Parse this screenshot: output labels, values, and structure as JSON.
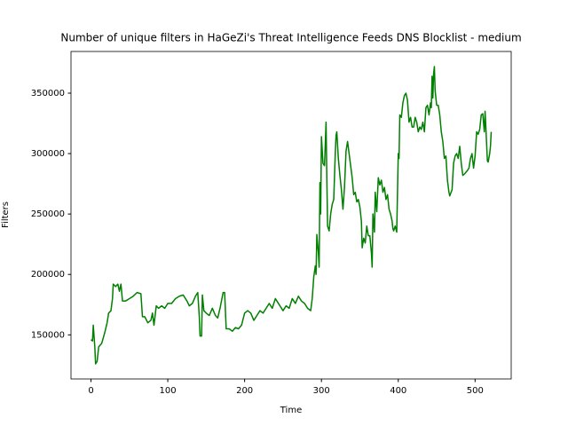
{
  "chart_data": {
    "type": "line",
    "title": "Number of unique filters in HaGeZi's Threat Intelligence Feeds DNS Blocklist - medium",
    "x_label": "Time",
    "y_label": "Filters",
    "color": "#008000",
    "xlim": [
      -26,
      547
    ],
    "ylim": [
      113500,
      384500
    ],
    "xticks": [
      0,
      100,
      200,
      300,
      400,
      500
    ],
    "yticks": [
      150000,
      200000,
      250000,
      300000,
      350000
    ],
    "x": [
      0,
      2,
      3,
      5,
      6,
      8,
      10,
      14,
      18,
      21,
      23,
      26,
      28,
      29,
      32,
      35,
      37,
      39,
      41,
      45,
      50,
      55,
      60,
      65,
      67,
      70,
      74,
      78,
      80,
      82,
      85,
      88,
      92,
      96,
      100,
      105,
      110,
      115,
      120,
      125,
      128,
      132,
      136,
      139,
      141,
      142,
      144,
      145,
      147,
      150,
      154,
      158,
      162,
      165,
      168,
      172,
      174,
      176,
      180,
      184,
      188,
      192,
      196,
      200,
      204,
      208,
      212,
      216,
      220,
      224,
      228,
      232,
      236,
      240,
      242,
      246,
      250,
      254,
      258,
      262,
      266,
      270,
      274,
      278,
      282,
      286,
      288,
      290,
      292,
      293,
      294,
      296,
      297,
      298,
      299,
      300,
      302,
      304,
      306,
      307,
      308,
      310,
      312,
      314,
      316,
      318,
      319,
      320,
      322,
      324,
      326,
      328,
      330,
      332,
      334,
      336,
      338,
      340,
      342,
      344,
      346,
      348,
      350,
      352,
      353,
      355,
      357,
      359,
      361,
      363,
      365,
      366,
      367,
      369,
      370,
      372,
      374,
      376,
      378,
      380,
      382,
      384,
      386,
      388,
      390,
      392,
      393,
      394,
      396,
      398,
      400,
      401,
      402,
      404,
      406,
      408,
      410,
      412,
      414,
      416,
      418,
      420,
      422,
      424,
      426,
      428,
      430,
      432,
      434,
      436,
      438,
      440,
      442,
      443,
      444,
      445,
      446,
      447,
      448,
      450,
      452,
      454,
      456,
      458,
      460,
      462,
      464,
      466,
      467,
      470,
      472,
      474,
      476,
      478,
      480,
      482,
      484,
      486,
      490,
      492,
      494,
      496,
      498,
      500,
      502,
      504,
      506,
      508,
      510,
      512,
      513,
      514,
      516,
      517,
      519,
      520,
      521
    ],
    "values": [
      146000,
      145000,
      158000,
      140000,
      126000,
      128000,
      140000,
      143000,
      152000,
      160000,
      168000,
      170000,
      180000,
      192000,
      190000,
      192000,
      186000,
      192000,
      178000,
      178000,
      180000,
      182000,
      185000,
      184000,
      165000,
      165000,
      160000,
      162000,
      168000,
      158000,
      174000,
      172000,
      174000,
      172000,
      176000,
      176000,
      180000,
      182000,
      183000,
      178000,
      174000,
      176000,
      182000,
      185000,
      165000,
      149000,
      149000,
      183000,
      170000,
      168000,
      166000,
      172000,
      166000,
      164000,
      172000,
      185000,
      185000,
      155000,
      155000,
      153000,
      156000,
      155000,
      158000,
      168000,
      170000,
      168000,
      162000,
      166000,
      170000,
      168000,
      172000,
      176000,
      172000,
      180000,
      178000,
      174000,
      170000,
      174000,
      172000,
      180000,
      176000,
      182000,
      178000,
      176000,
      172000,
      170000,
      180000,
      198000,
      207000,
      200000,
      233000,
      218000,
      206000,
      276000,
      250000,
      314000,
      292000,
      290000,
      326000,
      280000,
      240000,
      236000,
      250000,
      258000,
      262000,
      300000,
      315000,
      318000,
      296000,
      282000,
      270000,
      254000,
      272000,
      302000,
      310000,
      300000,
      290000,
      280000,
      266000,
      268000,
      260000,
      262000,
      256000,
      244000,
      222000,
      230000,
      226000,
      240000,
      232000,
      232000,
      218000,
      206000,
      250000,
      235000,
      268000,
      252000,
      280000,
      274000,
      278000,
      268000,
      272000,
      262000,
      266000,
      254000,
      250000,
      244000,
      238000,
      236000,
      240000,
      235000,
      300000,
      296000,
      332000,
      330000,
      342000,
      348000,
      350000,
      344000,
      326000,
      330000,
      322000,
      322000,
      330000,
      326000,
      318000,
      322000,
      320000,
      326000,
      318000,
      338000,
      340000,
      332000,
      342000,
      338000,
      364000,
      346000,
      366000,
      372000,
      352000,
      340000,
      340000,
      332000,
      318000,
      310000,
      296000,
      298000,
      278000,
      268000,
      265000,
      270000,
      292000,
      298000,
      300000,
      296000,
      306000,
      292000,
      282000,
      283000,
      286000,
      288000,
      296000,
      300000,
      288000,
      298000,
      318000,
      316000,
      320000,
      332000,
      333000,
      318000,
      335000,
      322000,
      294000,
      293000,
      300000,
      306000,
      318000
    ]
  }
}
